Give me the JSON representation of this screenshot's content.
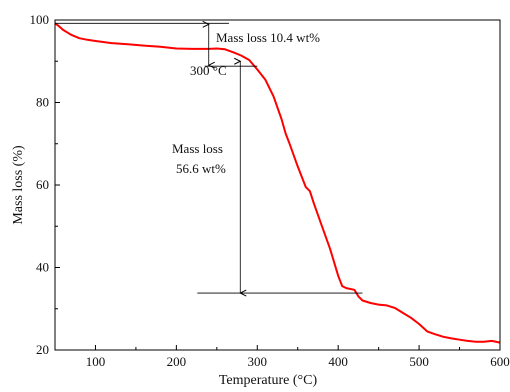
{
  "chart_data": {
    "type": "line",
    "title": "",
    "xlabel": "Temperature  (°C)",
    "ylabel": "Mass loss (%)",
    "xlim": [
      50,
      600
    ],
    "ylim": [
      20,
      100
    ],
    "xticks": [
      "100",
      "200",
      "300",
      "400",
      "500",
      "600"
    ],
    "yticks": [
      "20",
      "40",
      "60",
      "80",
      "100"
    ],
    "grid": false,
    "legend": "none",
    "series": [
      {
        "color": "#ff0000",
        "x": [
          50,
          55,
          60,
          70,
          80,
          90,
          100,
          120,
          140,
          160,
          180,
          200,
          220,
          240,
          250,
          260,
          270,
          280,
          290,
          300,
          310,
          320,
          330,
          335,
          340,
          350,
          360,
          365,
          370,
          380,
          390,
          400,
          405,
          410,
          420,
          425,
          430,
          440,
          450,
          460,
          470,
          480,
          490,
          500,
          510,
          520,
          530,
          540,
          550,
          560,
          570,
          580,
          590,
          600
        ],
        "y": [
          99.2,
          98.5,
          97.6,
          96.4,
          95.6,
          95.2,
          94.9,
          94.4,
          94.1,
          93.8,
          93.5,
          93.1,
          93.0,
          93.0,
          93.1,
          92.9,
          92.2,
          91.4,
          90.3,
          88.0,
          85.5,
          81.5,
          76.0,
          72.5,
          70.0,
          64.5,
          59.5,
          58.5,
          55.5,
          50.0,
          44.5,
          38.0,
          35.5,
          35.0,
          34.6,
          33.0,
          32.0,
          31.4,
          31.0,
          30.8,
          30.2,
          29.0,
          27.8,
          26.3,
          24.5,
          23.8,
          23.2,
          22.8,
          22.5,
          22.2,
          22.0,
          22.0,
          22.2,
          21.8
        ]
      }
    ],
    "annotations": [
      {
        "text": "Mass loss 10.4 wt%",
        "top_x": 240,
        "top_y": 99.2,
        "bottom_y": 88.8,
        "guide_top_x1": 50,
        "guide_top_x2": 265,
        "guide_bottom_x1": 235,
        "guide_bottom_x2": 300
      },
      {
        "text": "300 °C"
      },
      {
        "text_line1": "Mass loss",
        "text_line2": "56.6 wt%",
        "x": 300,
        "top_y": 90.0,
        "bottom_y": 33.8,
        "guide_bottom_x1": 300,
        "guide_bottom_x2": 430
      }
    ]
  }
}
